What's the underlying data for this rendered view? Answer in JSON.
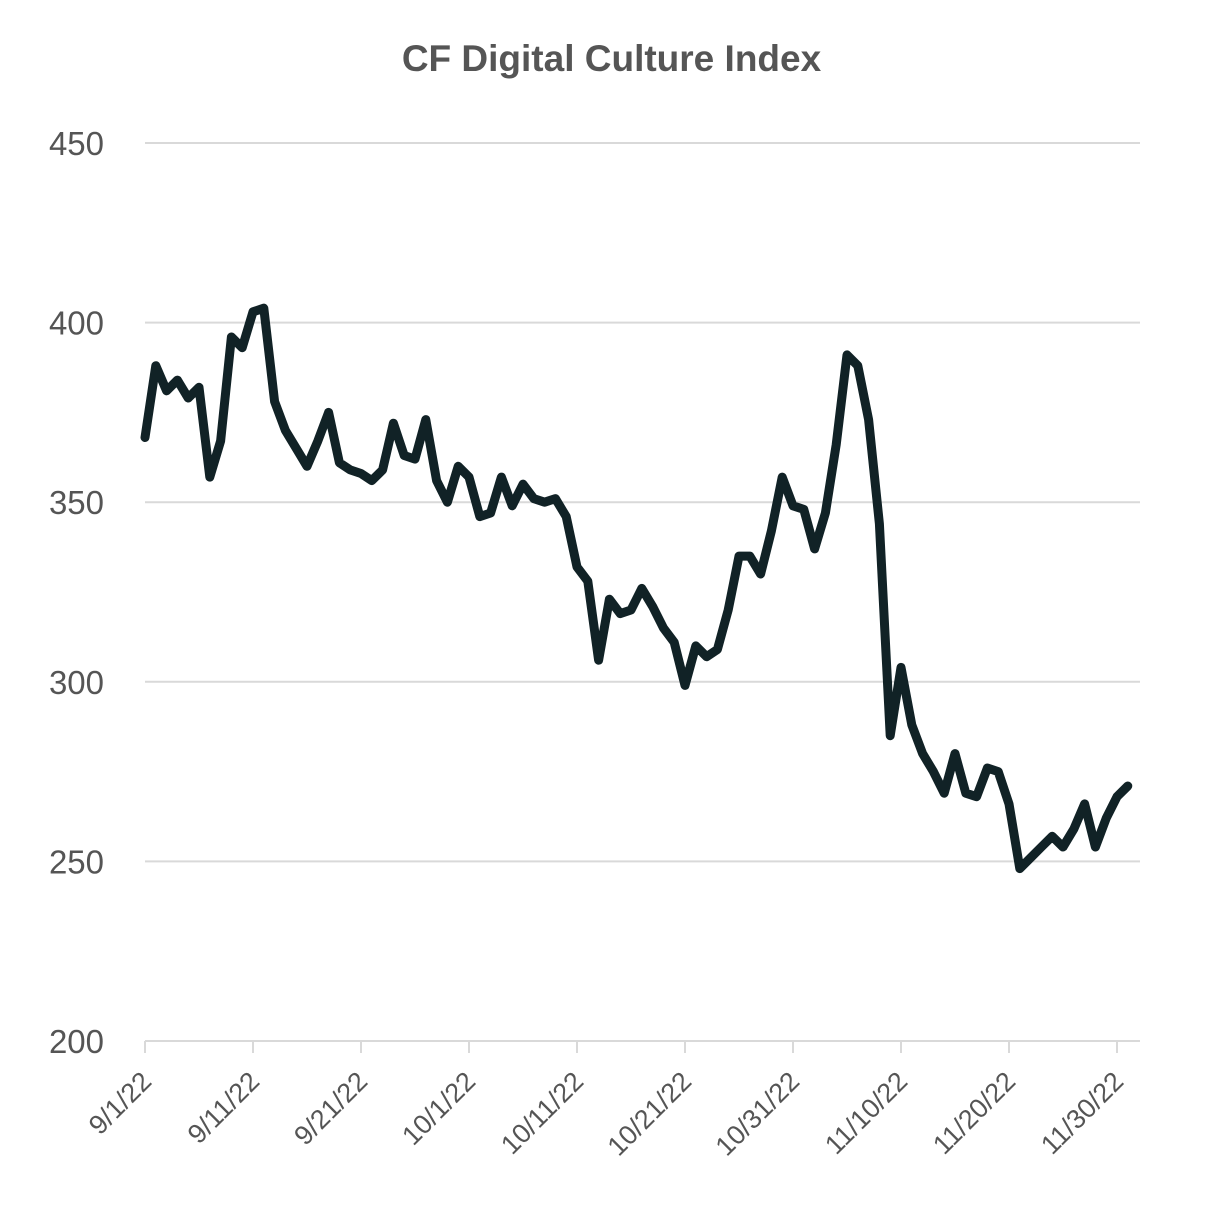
{
  "chart_data": {
    "type": "line",
    "title": "CF Digital Culture Index",
    "xlabel": "",
    "ylabel": "",
    "ylim": [
      200,
      450
    ],
    "yticks": [
      200,
      250,
      300,
      350,
      400,
      450
    ],
    "xtick_labels": [
      "9/1/22",
      "9/11/22",
      "9/21/22",
      "10/1/22",
      "10/11/22",
      "10/21/22",
      "10/31/22",
      "11/10/22",
      "11/20/22",
      "11/30/22"
    ],
    "grid": "horizontal",
    "line_color": "#112226",
    "series": [
      {
        "x": [
          "9/1/22",
          "9/2/22",
          "9/3/22",
          "9/4/22",
          "9/5/22",
          "9/6/22",
          "9/7/22",
          "9/8/22",
          "9/9/22",
          "9/10/22",
          "9/11/22",
          "9/12/22",
          "9/13/22",
          "9/14/22",
          "9/15/22",
          "9/16/22",
          "9/17/22",
          "9/18/22",
          "9/19/22",
          "9/20/22",
          "9/21/22",
          "9/22/22",
          "9/23/22",
          "9/24/22",
          "9/25/22",
          "9/26/22",
          "9/27/22",
          "9/28/22",
          "9/29/22",
          "9/30/22",
          "10/1/22",
          "10/2/22",
          "10/3/22",
          "10/4/22",
          "10/5/22",
          "10/6/22",
          "10/7/22",
          "10/8/22",
          "10/9/22",
          "10/10/22",
          "10/11/22",
          "10/12/22",
          "10/13/22",
          "10/14/22",
          "10/15/22",
          "10/16/22",
          "10/17/22",
          "10/18/22",
          "10/19/22",
          "10/20/22",
          "10/21/22",
          "10/22/22",
          "10/23/22",
          "10/24/22",
          "10/25/22",
          "10/26/22",
          "10/27/22",
          "10/28/22",
          "10/29/22",
          "10/30/22",
          "10/31/22",
          "11/1/22",
          "11/2/22",
          "11/3/22",
          "11/4/22",
          "11/5/22",
          "11/6/22",
          "11/7/22",
          "11/8/22",
          "11/9/22",
          "11/10/22",
          "11/11/22",
          "11/12/22",
          "11/13/22",
          "11/14/22",
          "11/15/22",
          "11/16/22",
          "11/17/22",
          "11/18/22",
          "11/19/22",
          "11/20/22",
          "11/21/22",
          "11/22/22",
          "11/23/22",
          "11/24/22",
          "11/25/22",
          "11/26/22",
          "11/27/22",
          "11/28/22",
          "11/29/22",
          "11/30/22",
          "12/1/22"
        ],
        "values": [
          368,
          388,
          381,
          384,
          379,
          382,
          357,
          367,
          396,
          393,
          403,
          404,
          378,
          370,
          365,
          360,
          367,
          375,
          361,
          359,
          358,
          356,
          359,
          372,
          363,
          362,
          373,
          356,
          350,
          360,
          357,
          346,
          347,
          357,
          349,
          355,
          351,
          350,
          351,
          346,
          332,
          328,
          306,
          323,
          319,
          320,
          326,
          321,
          315,
          311,
          299,
          310,
          307,
          309,
          320,
          335,
          335,
          330,
          342,
          357,
          349,
          348,
          337,
          347,
          366,
          391,
          388,
          373,
          344,
          285,
          304,
          288,
          280,
          275,
          269,
          280,
          269,
          268,
          276,
          275,
          266,
          248,
          251,
          254,
          257,
          254,
          259,
          266,
          254,
          262,
          268,
          271
        ]
      }
    ]
  }
}
